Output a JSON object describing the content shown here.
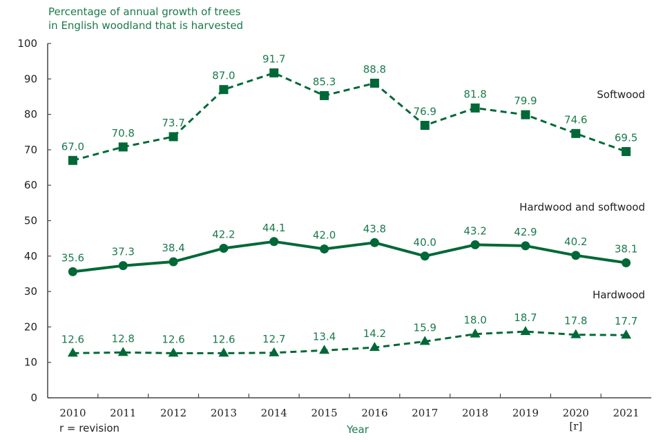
{
  "chart_data": {
    "type": "line",
    "title": "Percentage of annual growth of trees in English woodland that is harvested",
    "title_lines": [
      "Percentage of annual growth of trees",
      "in English woodland that is harvested"
    ],
    "xlabel": "Year",
    "ylabel": "",
    "ylim": [
      0,
      100
    ],
    "yticks": [
      0,
      10,
      20,
      30,
      40,
      50,
      60,
      70,
      80,
      90,
      100
    ],
    "categories": [
      "2010",
      "2011",
      "2012",
      "2013",
      "2014",
      "2015",
      "2016",
      "2017",
      "2018",
      "2019",
      "2020",
      "2021"
    ],
    "category_notes": {
      "2020": "[r]"
    },
    "footnote": "r = revision",
    "grid": false,
    "color": "#006837",
    "label_color": "#1a7a4a",
    "series": [
      {
        "name": "Softwood",
        "marker": "square",
        "line": "dashed",
        "values": [
          67.0,
          70.8,
          73.7,
          87.0,
          91.7,
          85.3,
          88.8,
          76.9,
          81.8,
          79.9,
          74.6,
          69.5
        ]
      },
      {
        "name": "Hardwood and softwood",
        "marker": "circle",
        "line": "solid",
        "values": [
          35.6,
          37.3,
          38.4,
          42.2,
          44.1,
          42.0,
          43.8,
          40.0,
          43.2,
          42.9,
          40.2,
          38.1
        ]
      },
      {
        "name": "Hardwood",
        "marker": "triangle",
        "line": "dashed",
        "values": [
          12.6,
          12.8,
          12.6,
          12.6,
          12.7,
          13.4,
          14.2,
          15.9,
          18.0,
          18.7,
          17.8,
          17.7
        ]
      }
    ]
  }
}
